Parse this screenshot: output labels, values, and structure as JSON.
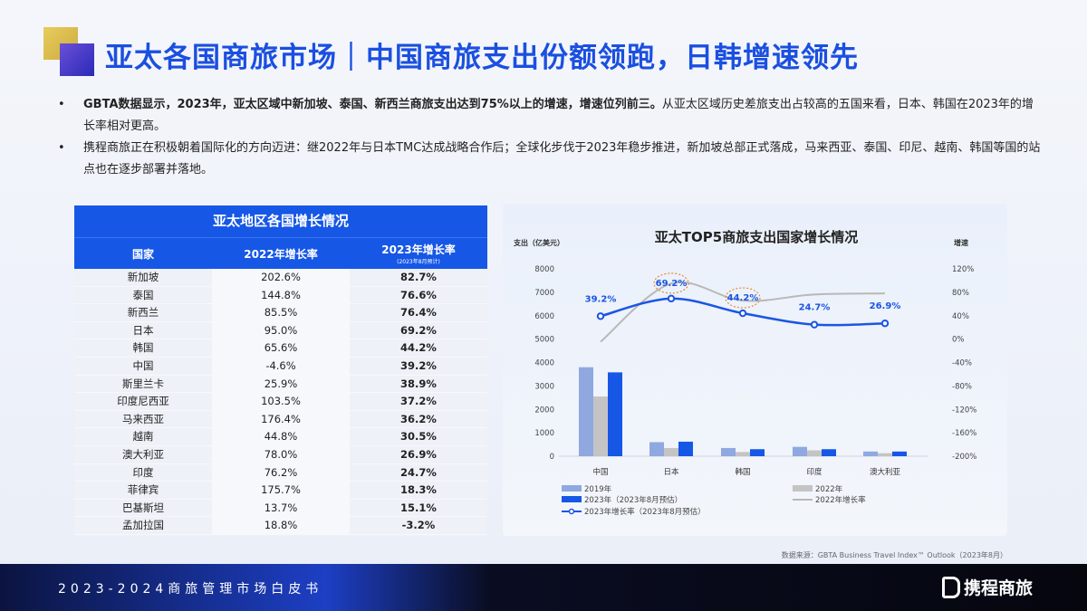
{
  "header": {
    "title": "亚太各国商旅市场｜中国商旅支出份额领跑，日韩增速领先"
  },
  "bullets": [
    {
      "bold": "GBTA数据显示，2023年，亚太区域中新加坡、泰国、新西兰商旅支出达到75%以上的增速，增速位列前三。",
      "text": "从亚太区域历史差旅支出占较高的五国来看，日本、韩国在2023年的增长率相对更高。"
    },
    {
      "bold": "",
      "text": "携程商旅正在积极朝着国际化的方向迈进：继2022年与日本TMC达成战略合作后；全球化步伐于2023年稳步推进，新加坡总部正式落成，马来西亚、泰国、印尼、越南、韩国等国的站点也在逐步部署并落地。"
    }
  ],
  "table": {
    "title": "亚太地区各国增长情况",
    "columns": [
      "国家",
      "2022年增长率",
      "2023年增长率"
    ],
    "column_note": "(2023年8月预计)",
    "rows": [
      [
        "新加坡",
        "202.6%",
        "82.7%"
      ],
      [
        "泰国",
        "144.8%",
        "76.6%"
      ],
      [
        "新西兰",
        "85.5%",
        "76.4%"
      ],
      [
        "日本",
        "95.0%",
        "69.2%"
      ],
      [
        "韩国",
        "65.6%",
        "44.2%"
      ],
      [
        "中国",
        "-4.6%",
        "39.2%"
      ],
      [
        "斯里兰卡",
        "25.9%",
        "38.9%"
      ],
      [
        "印度尼西亚",
        "103.5%",
        "37.2%"
      ],
      [
        "马来西亚",
        "176.4%",
        "36.2%"
      ],
      [
        "越南",
        "44.8%",
        "30.5%"
      ],
      [
        "澳大利亚",
        "78.0%",
        "26.9%"
      ],
      [
        "印度",
        "76.2%",
        "24.7%"
      ],
      [
        "菲律宾",
        "175.7%",
        "18.3%"
      ],
      [
        "巴基斯坦",
        "13.7%",
        "15.1%"
      ],
      [
        "孟加拉国",
        "18.8%",
        "-3.2%"
      ]
    ]
  },
  "chart_data": {
    "type": "bar+line",
    "title": "亚太TOP5商旅支出国家增长情况",
    "ylabel": "支出（亿美元）",
    "y2label": "增速",
    "ylim": [
      0,
      8000
    ],
    "yticks": [
      0,
      1000,
      2000,
      3000,
      4000,
      5000,
      6000,
      7000,
      8000
    ],
    "y2lim": [
      -200,
      120
    ],
    "y2ticks": [
      "-200%",
      "-160%",
      "-120%",
      "-80%",
      "-40%",
      "0%",
      "40%",
      "80%",
      "120%"
    ],
    "categories": [
      "中国",
      "日本",
      "韩国",
      "印度",
      "澳大利亚"
    ],
    "bar_series": [
      {
        "name": "2019年",
        "color": "#8fa8e0",
        "values": [
          3800,
          600,
          350,
          400,
          200
        ]
      },
      {
        "name": "2022年",
        "color": "#c4c4c4",
        "values": [
          2550,
          350,
          180,
          250,
          130
        ]
      },
      {
        "name": "2023年（2023年8月预估）",
        "color": "#1657e6",
        "values": [
          3580,
          620,
          300,
          300,
          200
        ]
      }
    ],
    "line_series": [
      {
        "name": "2022年增长率",
        "color": "#b8b8b8",
        "values": [
          -4.6,
          95.0,
          65.6,
          76.2,
          78.0
        ]
      },
      {
        "name": "2023年增长率（2023年8月预估）",
        "color": "#1a55e3",
        "values": [
          39.2,
          69.2,
          44.2,
          24.7,
          26.9
        ],
        "labels": [
          "39.2%",
          "69.2%",
          "44.2%",
          "24.7%",
          "26.9%"
        ]
      }
    ],
    "highlighted": [
      "69.2%",
      "44.2%"
    ],
    "grid": false,
    "legend": "bottom"
  },
  "source": "数据来源：GBTA Business Travel Index™ Outlook（2023年8月）",
  "footer": {
    "title": "2023-2024商旅管理市场白皮书",
    "brand": "携程商旅"
  }
}
